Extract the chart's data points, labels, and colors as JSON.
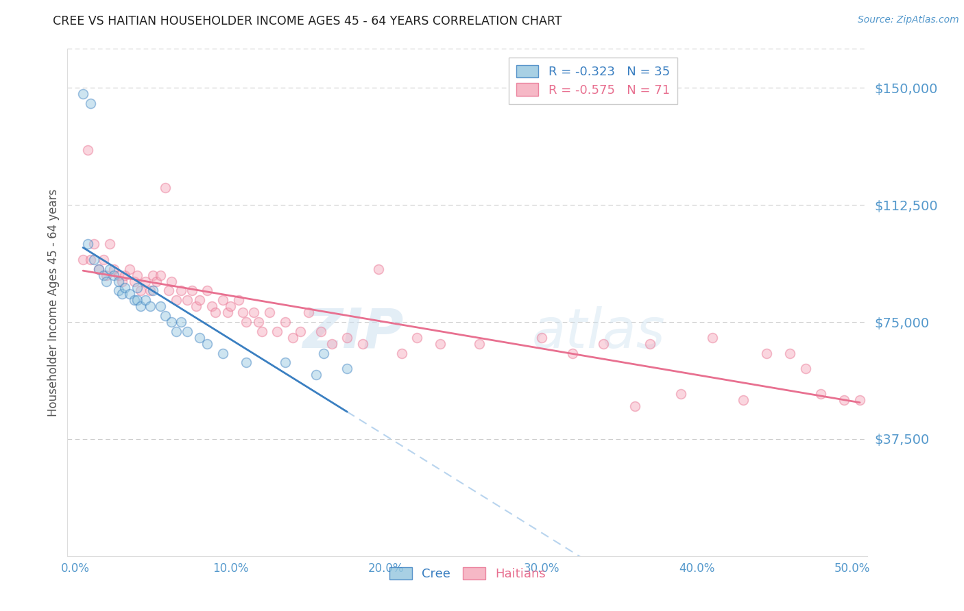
{
  "title": "CREE VS HAITIAN HOUSEHOLDER INCOME AGES 45 - 64 YEARS CORRELATION CHART",
  "source": "Source: ZipAtlas.com",
  "ylabel": "Householder Income Ages 45 - 64 years",
  "xlabel_ticks": [
    "0.0%",
    "",
    "",
    "",
    "",
    "",
    "",
    "",
    "",
    "",
    "10.0%",
    "",
    "",
    "",
    "",
    "",
    "",
    "",
    "",
    "",
    "20.0%",
    "",
    "",
    "",
    "",
    "",
    "",
    "",
    "",
    "",
    "30.0%",
    "",
    "",
    "",
    "",
    "",
    "",
    "",
    "",
    "",
    "40.0%",
    "",
    "",
    "",
    "",
    "",
    "",
    "",
    "",
    "",
    "50.0%"
  ],
  "xlabel_vals": [
    0.0,
    0.01,
    0.02,
    0.03,
    0.04,
    0.05,
    0.06,
    0.07,
    0.08,
    0.09,
    0.1,
    0.11,
    0.12,
    0.13,
    0.14,
    0.15,
    0.16,
    0.17,
    0.18,
    0.19,
    0.2,
    0.21,
    0.22,
    0.23,
    0.24,
    0.25,
    0.26,
    0.27,
    0.28,
    0.29,
    0.3,
    0.31,
    0.32,
    0.33,
    0.34,
    0.35,
    0.36,
    0.37,
    0.38,
    0.39,
    0.4,
    0.41,
    0.42,
    0.43,
    0.44,
    0.45,
    0.46,
    0.47,
    0.48,
    0.49,
    0.5
  ],
  "ytick_labels": [
    "$37,500",
    "$75,000",
    "$112,500",
    "$150,000"
  ],
  "ytick_vals": [
    37500,
    75000,
    112500,
    150000
  ],
  "ylim": [
    0,
    162500
  ],
  "xlim": [
    -0.005,
    0.51
  ],
  "cree_color": "#92c5de",
  "haitian_color": "#f4a6b8",
  "cree_line_color": "#3a7fc1",
  "haitian_line_color": "#e87090",
  "dashed_line_color": "#b8d4ee",
  "legend_r_cree": "R = -0.323",
  "legend_n_cree": "N = 35",
  "legend_r_haitian": "R = -0.575",
  "legend_n_haitian": "N = 71",
  "watermark_zip": "ZIP",
  "watermark_atlas": "atlas",
  "cree_points_x": [
    0.005,
    0.01,
    0.008,
    0.012,
    0.015,
    0.018,
    0.02,
    0.022,
    0.025,
    0.028,
    0.028,
    0.03,
    0.032,
    0.035,
    0.038,
    0.04,
    0.04,
    0.042,
    0.045,
    0.048,
    0.05,
    0.055,
    0.058,
    0.062,
    0.065,
    0.068,
    0.072,
    0.08,
    0.085,
    0.095,
    0.11,
    0.135,
    0.155,
    0.16,
    0.175
  ],
  "cree_points_y": [
    148000,
    145000,
    100000,
    95000,
    92000,
    90000,
    88000,
    92000,
    90000,
    85000,
    88000,
    84000,
    86000,
    84000,
    82000,
    86000,
    82000,
    80000,
    82000,
    80000,
    85000,
    80000,
    77000,
    75000,
    72000,
    75000,
    72000,
    70000,
    68000,
    65000,
    62000,
    62000,
    58000,
    65000,
    60000
  ],
  "haitian_points_x": [
    0.005,
    0.008,
    0.01,
    0.012,
    0.015,
    0.018,
    0.02,
    0.022,
    0.025,
    0.028,
    0.03,
    0.032,
    0.035,
    0.038,
    0.04,
    0.042,
    0.045,
    0.048,
    0.05,
    0.052,
    0.055,
    0.058,
    0.06,
    0.062,
    0.065,
    0.068,
    0.072,
    0.075,
    0.078,
    0.08,
    0.085,
    0.088,
    0.09,
    0.095,
    0.098,
    0.1,
    0.105,
    0.108,
    0.11,
    0.115,
    0.118,
    0.12,
    0.125,
    0.13,
    0.135,
    0.14,
    0.145,
    0.15,
    0.158,
    0.165,
    0.175,
    0.185,
    0.195,
    0.21,
    0.22,
    0.235,
    0.26,
    0.3,
    0.32,
    0.34,
    0.36,
    0.37,
    0.39,
    0.41,
    0.43,
    0.445,
    0.46,
    0.47,
    0.48,
    0.495,
    0.505
  ],
  "haitian_points_y": [
    95000,
    130000,
    95000,
    100000,
    92000,
    95000,
    90000,
    100000,
    92000,
    90000,
    88000,
    90000,
    92000,
    88000,
    90000,
    85000,
    88000,
    85000,
    90000,
    88000,
    90000,
    118000,
    85000,
    88000,
    82000,
    85000,
    82000,
    85000,
    80000,
    82000,
    85000,
    80000,
    78000,
    82000,
    78000,
    80000,
    82000,
    78000,
    75000,
    78000,
    75000,
    72000,
    78000,
    72000,
    75000,
    70000,
    72000,
    78000,
    72000,
    68000,
    70000,
    68000,
    92000,
    65000,
    70000,
    68000,
    68000,
    70000,
    65000,
    68000,
    48000,
    68000,
    52000,
    70000,
    50000,
    65000,
    65000,
    60000,
    52000,
    50000,
    50000
  ],
  "background_color": "#ffffff",
  "grid_color": "#cccccc",
  "title_color": "#222222",
  "axis_label_color": "#555555",
  "tick_label_color": "#5599cc",
  "marker_size": 100,
  "marker_alpha": 0.45,
  "marker_linewidth": 1.2
}
